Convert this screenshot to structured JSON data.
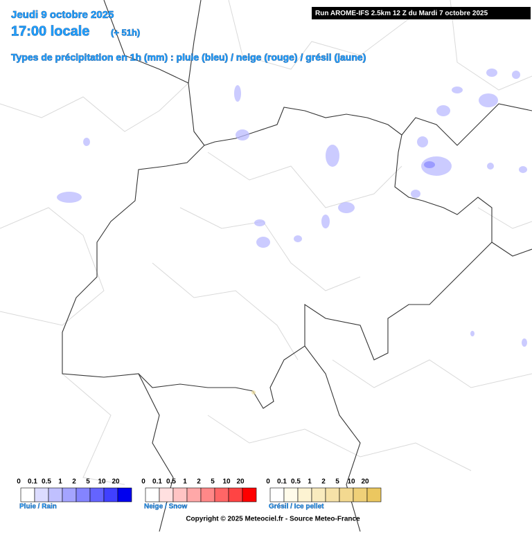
{
  "header": {
    "date": "Jeudi 9 octobre 2025",
    "time": "17:00 locale",
    "lead": "(+ 51h)",
    "subtitle": "Types de précipitation en 1h (mm) : pluie (bleu) / neige (rouge) / grésil (jaune)",
    "run": "Run AROME-IFS 2.5km 12 Z du Mardi 7 octobre 2025"
  },
  "legends": [
    {
      "label": "Pluie / Rain",
      "ticks": [
        0,
        0.1,
        0.5,
        1,
        2,
        5,
        10,
        20
      ],
      "colors": [
        "#ffffff",
        "#dcdcff",
        "#c0c0ff",
        "#a4a4ff",
        "#8484ff",
        "#6464ff",
        "#4040ff",
        "#0000ee"
      ]
    },
    {
      "label": "Neige / Snow",
      "ticks": [
        0,
        0.1,
        0.5,
        1,
        2,
        5,
        10,
        20
      ],
      "colors": [
        "#ffffff",
        "#ffe0e0",
        "#ffc4c4",
        "#ffa8a8",
        "#ff8888",
        "#ff6666",
        "#ff4444",
        "#ff0000"
      ]
    },
    {
      "label": "Grésil / Ice pellet",
      "ticks": [
        0,
        0.1,
        0.5,
        1,
        2,
        5,
        10,
        20
      ],
      "colors": [
        "#ffffff",
        "#fffbea",
        "#fdf3d2",
        "#f9ebbe",
        "#f6e2a8",
        "#f3d990",
        "#efd078",
        "#ebc760"
      ]
    }
  ],
  "copyright": "Copyright © 2025 Meteociel.fr - Source Meteo-France"
}
